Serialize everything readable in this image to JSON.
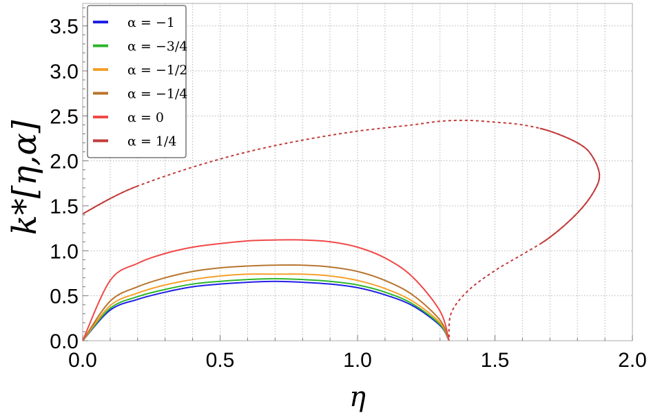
{
  "chart_data": {
    "type": "line",
    "xlabel": "η",
    "ylabel": "k*[η,α]",
    "xlim": [
      0,
      2.0
    ],
    "ylim": [
      0,
      3.75
    ],
    "x_ticks": [
      "0.0",
      "0.5",
      "1.0",
      "1.5",
      "2.0"
    ],
    "y_ticks": [
      "0.0",
      "0.5",
      "1.0",
      "1.5",
      "2.0",
      "2.5",
      "3.0",
      "3.5"
    ],
    "grid": true,
    "legend_position": "top-left",
    "series": [
      {
        "name": "α = −1",
        "color": "#1f1fe6",
        "style": "solid",
        "x": [
          0,
          0.1,
          0.2,
          0.3,
          0.4,
          0.5,
          0.6,
          0.7,
          0.8,
          0.9,
          1.0,
          1.1,
          1.2,
          1.3,
          1.333
        ],
        "y": [
          0,
          0.34,
          0.46,
          0.54,
          0.6,
          0.63,
          0.65,
          0.66,
          0.65,
          0.63,
          0.59,
          0.51,
          0.39,
          0.17,
          0
        ]
      },
      {
        "name": "α = −3/4",
        "color": "#2bb52b",
        "style": "solid",
        "x": [
          0,
          0.1,
          0.2,
          0.3,
          0.4,
          0.5,
          0.6,
          0.7,
          0.8,
          0.9,
          1.0,
          1.1,
          1.2,
          1.3,
          1.333
        ],
        "y": [
          0,
          0.36,
          0.49,
          0.57,
          0.63,
          0.66,
          0.68,
          0.69,
          0.68,
          0.66,
          0.62,
          0.54,
          0.41,
          0.18,
          0
        ]
      },
      {
        "name": "α = −1/2",
        "color": "#f5a02a",
        "style": "solid",
        "x": [
          0,
          0.1,
          0.2,
          0.3,
          0.4,
          0.5,
          0.6,
          0.7,
          0.8,
          0.9,
          1.0,
          1.1,
          1.2,
          1.3,
          1.333
        ],
        "y": [
          0,
          0.39,
          0.53,
          0.62,
          0.68,
          0.72,
          0.74,
          0.74,
          0.74,
          0.72,
          0.67,
          0.58,
          0.44,
          0.2,
          0
        ]
      },
      {
        "name": "α = −1/4",
        "color": "#b8752e",
        "style": "solid",
        "x": [
          0,
          0.1,
          0.2,
          0.3,
          0.4,
          0.5,
          0.6,
          0.7,
          0.8,
          0.9,
          1.0,
          1.1,
          1.2,
          1.3,
          1.333
        ],
        "y": [
          0,
          0.44,
          0.6,
          0.7,
          0.77,
          0.81,
          0.83,
          0.84,
          0.84,
          0.82,
          0.77,
          0.67,
          0.51,
          0.23,
          0
        ]
      },
      {
        "name": "α = 0",
        "color": "#f04848",
        "style": "solid",
        "x": [
          0,
          0.1,
          0.2,
          0.3,
          0.4,
          0.5,
          0.6,
          0.7,
          0.8,
          0.9,
          1.0,
          1.1,
          1.2,
          1.3,
          1.333
        ],
        "y": [
          0,
          0.67,
          0.86,
          0.97,
          1.04,
          1.08,
          1.11,
          1.12,
          1.12,
          1.1,
          1.04,
          0.92,
          0.71,
          0.33,
          0
        ]
      },
      {
        "name": "α = 1/4",
        "color": "#c23b3b",
        "style": "solid/dashed",
        "x": [
          0,
          0.1,
          0.2,
          0.4,
          0.6,
          0.8,
          1.0,
          1.2,
          1.3,
          1.4,
          1.5,
          1.6,
          1.7,
          1.8,
          1.85,
          1.88,
          1.86,
          1.8,
          1.7,
          1.6,
          1.5,
          1.4,
          1.34,
          1.333
        ],
        "y": [
          1.41,
          1.58,
          1.72,
          1.93,
          2.1,
          2.23,
          2.33,
          2.4,
          2.44,
          2.45,
          2.43,
          2.4,
          2.33,
          2.2,
          2.07,
          1.85,
          1.66,
          1.42,
          1.15,
          0.96,
          0.78,
          0.55,
          0.3,
          0
        ]
      }
    ]
  }
}
